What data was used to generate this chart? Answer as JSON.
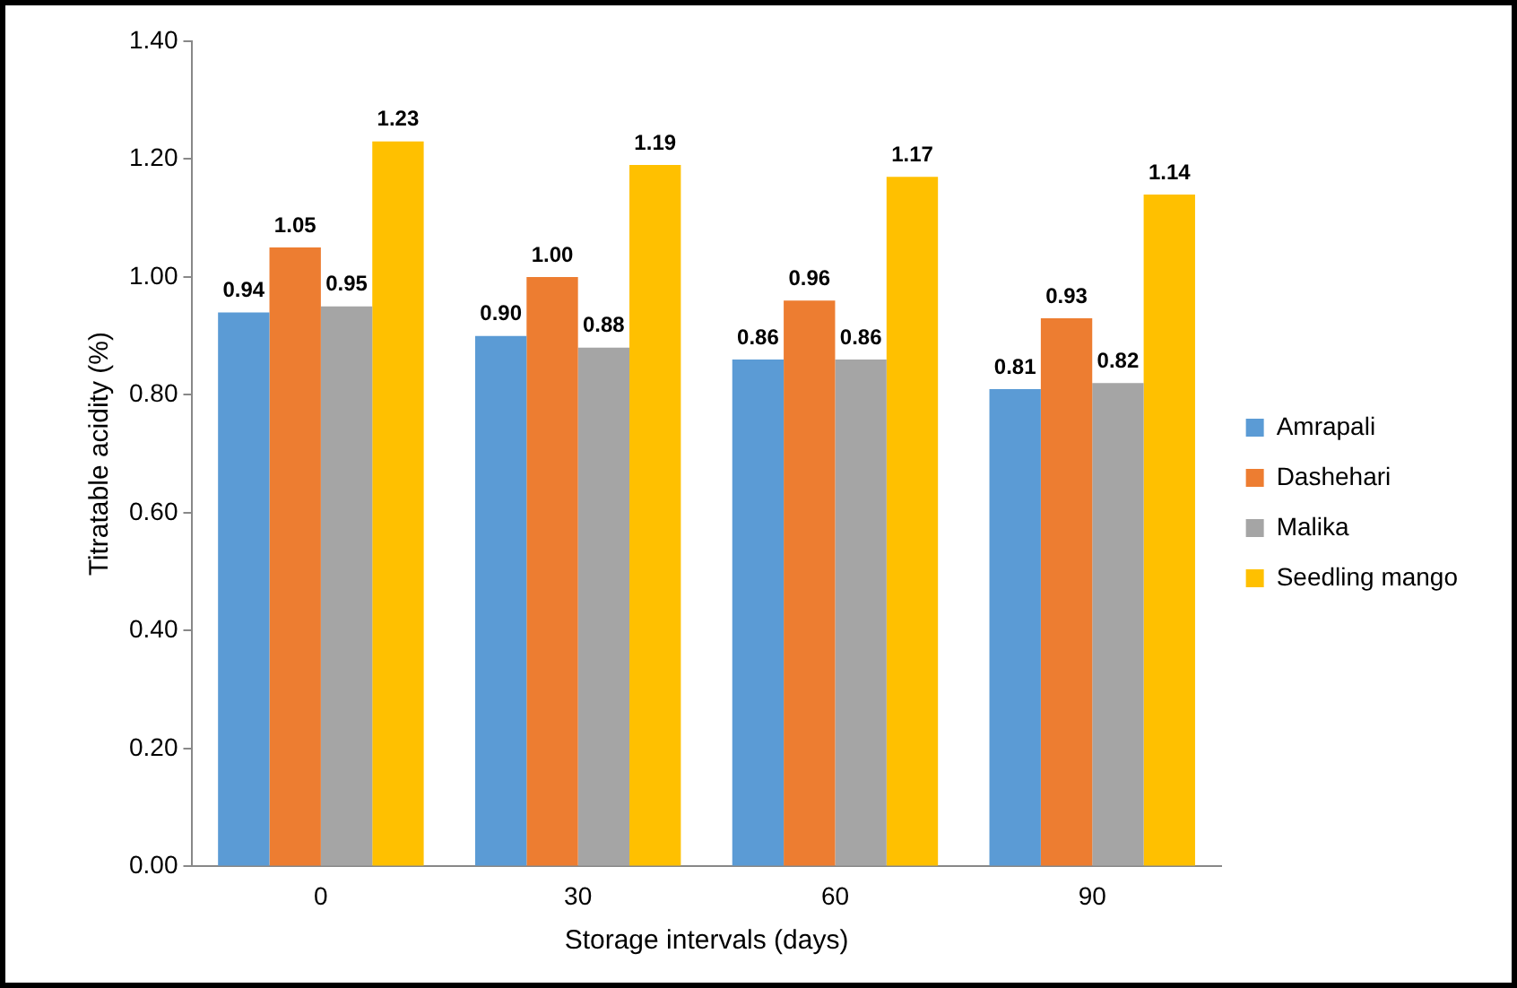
{
  "chart_data": {
    "type": "bar",
    "xlabel": "Storage intervals (days)",
    "ylabel": "Titratable acidity (%)",
    "categories": [
      "0",
      "30",
      "60",
      "90"
    ],
    "series": [
      {
        "name": "Amrapali",
        "color": "#5b9bd5",
        "values": [
          0.94,
          0.9,
          0.86,
          0.81
        ],
        "value_labels": [
          "0.94",
          "0.90",
          "0.86",
          "0.81"
        ]
      },
      {
        "name": "Dashehari",
        "color": "#ed7d31",
        "values": [
          1.05,
          1.0,
          0.96,
          0.93
        ],
        "value_labels": [
          "1.05",
          "1.00",
          "0.96",
          "0.93"
        ]
      },
      {
        "name": "Malika",
        "color": "#a5a5a5",
        "values": [
          0.95,
          0.88,
          0.86,
          0.82
        ],
        "value_labels": [
          "0.95",
          "0.88",
          "0.86",
          "0.82"
        ]
      },
      {
        "name": "Seedling mango",
        "color": "#ffc000",
        "values": [
          1.23,
          1.19,
          1.17,
          1.14
        ],
        "value_labels": [
          "1.23",
          "1.19",
          "1.17",
          "1.14"
        ]
      }
    ],
    "ylim": [
      0,
      1.4
    ],
    "yticks": [
      {
        "value": 0,
        "label": "0.00"
      },
      {
        "value": 0.2,
        "label": "0.20"
      },
      {
        "value": 0.4,
        "label": "0.40"
      },
      {
        "value": 0.6,
        "label": "0.60"
      },
      {
        "value": 0.8,
        "label": "0.80"
      },
      {
        "value": 1.0,
        "label": "1.00"
      },
      {
        "value": 1.2,
        "label": "1.20"
      },
      {
        "value": 1.4,
        "label": "1.40"
      }
    ],
    "grid": false,
    "legend": "right"
  }
}
